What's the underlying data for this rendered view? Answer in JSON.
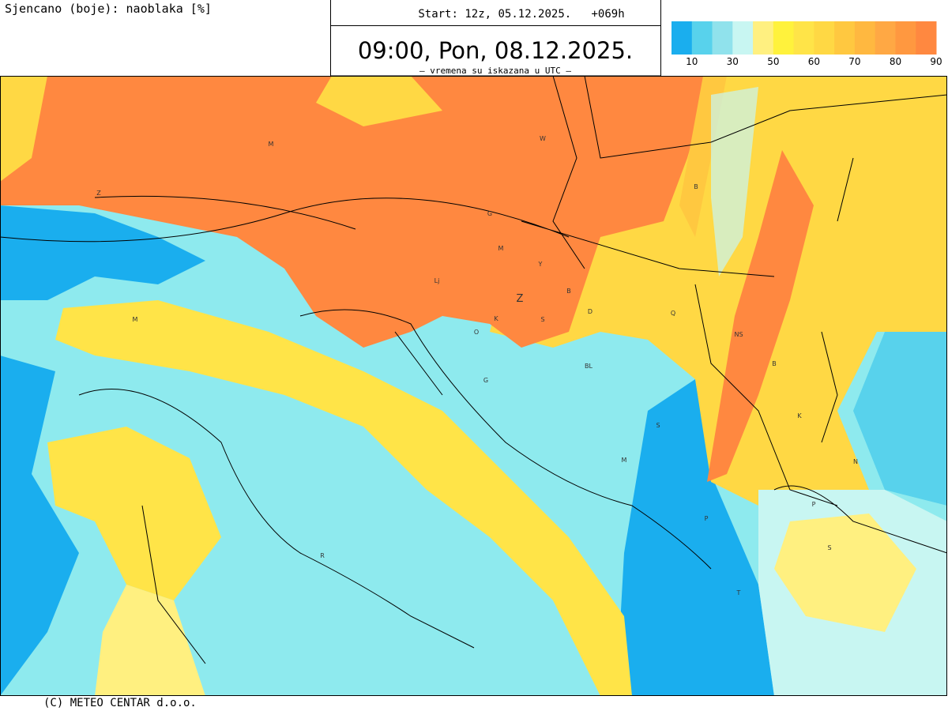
{
  "header": {
    "left_title": "Sjencano (boje): naoblaka [%]",
    "start": "Start: 12z, 05.12.2025.   +069h",
    "valid_time": "09:00, Pon, 08.12.2025.",
    "note": "– vremena su iskazana u UTC –"
  },
  "legend": {
    "colors": [
      "#1aaeee",
      "#58d2ec",
      "#90e2ec",
      "#c8f6f2",
      "#fff080",
      "#fff23c",
      "#ffe448",
      "#ffd844",
      "#ffc840",
      "#ffb840",
      "#ffa844",
      "#ff9840",
      "#ff8840"
    ],
    "labels": [
      10,
      30,
      50,
      60,
      70,
      80,
      90
    ]
  },
  "map_labels": [
    "M",
    "W",
    "Z",
    "B",
    "G",
    "M",
    "Y",
    "Lj",
    "Z",
    "B",
    "D",
    "Q",
    "K",
    "S",
    "O",
    "M",
    "NS",
    "BL",
    "B",
    "G",
    "K",
    "S",
    "M",
    "N",
    "P",
    "P",
    "S",
    "R",
    "T"
  ],
  "footer": "(C) METEO CENTAR d.o.o."
}
